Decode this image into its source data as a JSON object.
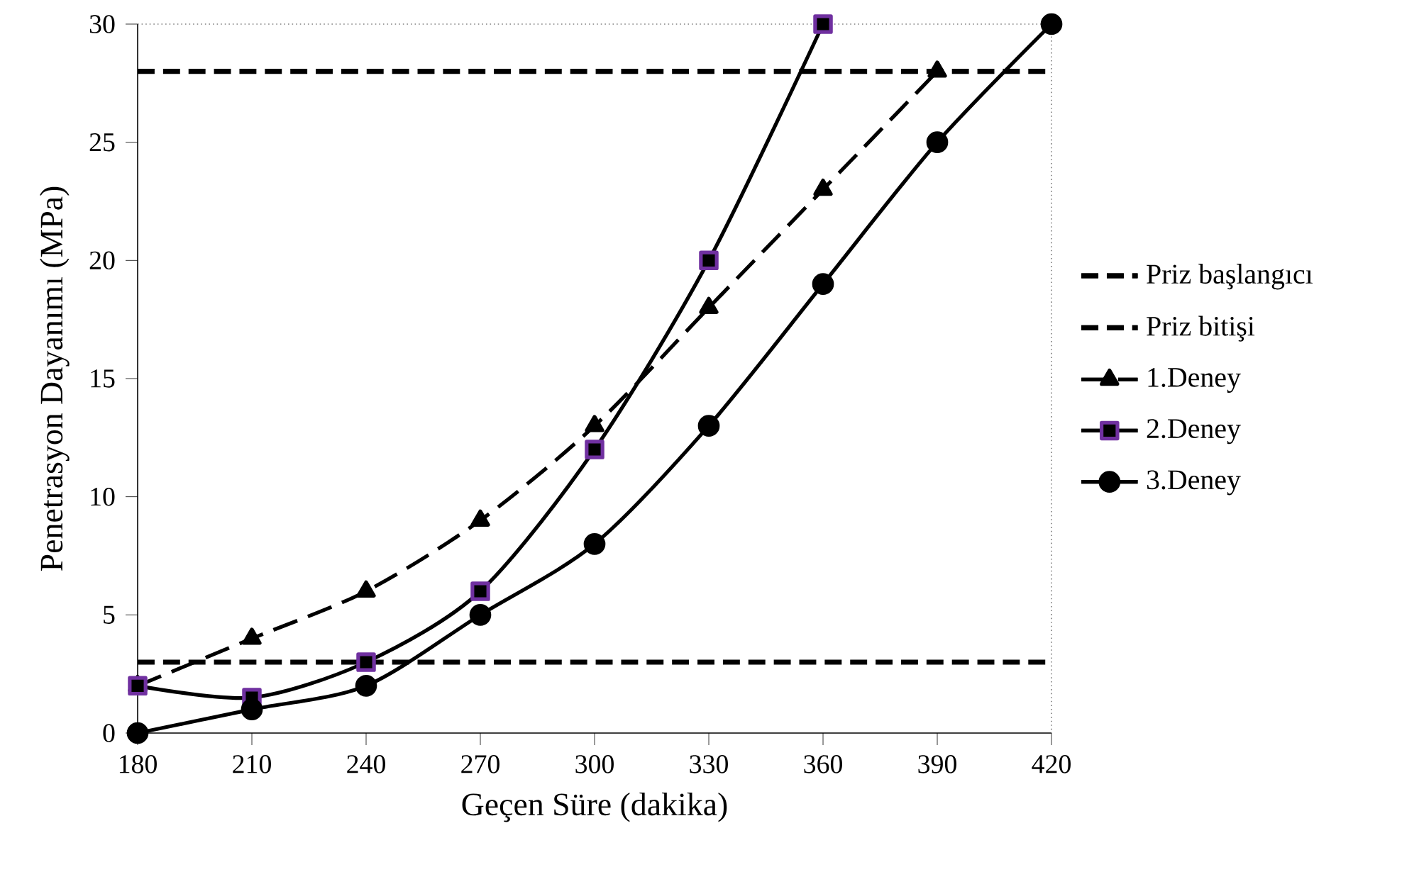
{
  "chart_data": {
    "type": "line",
    "xlabel": "Geçen Süre (dakika)",
    "ylabel": "Penetrasyon Dayanımı (MPa)",
    "x": [
      180,
      210,
      240,
      270,
      300,
      330,
      360,
      390,
      420
    ],
    "series": [
      {
        "name": "1.Deney",
        "color": "#000000",
        "marker": "triangle",
        "line_style": "dashed",
        "values": [
          2,
          4,
          6,
          9,
          13,
          18,
          23,
          28,
          null
        ]
      },
      {
        "name": "2.Deney",
        "color": "#000000",
        "marker": "square",
        "line_style": "solid",
        "values": [
          2,
          1.5,
          3,
          6,
          12,
          20,
          30,
          null,
          null
        ]
      },
      {
        "name": "3.Deney",
        "color": "#000000",
        "marker": "circle",
        "line_style": "solid",
        "values": [
          0,
          1,
          2,
          5,
          8,
          13,
          19,
          25,
          30
        ]
      }
    ],
    "ref_lines": [
      {
        "axis": "y",
        "value": 3,
        "label": "Priz başlangıcı",
        "color": "#000000",
        "line_style": "dashed"
      },
      {
        "axis": "y",
        "value": 28,
        "label": "Priz bitişi",
        "color": "#000000",
        "line_style": "dashed"
      }
    ],
    "xlim": [
      180,
      420
    ],
    "xticks": [
      180,
      210,
      240,
      270,
      300,
      330,
      360,
      390,
      420
    ],
    "ylim": [
      0,
      30
    ],
    "yticks": [
      0,
      5,
      10,
      15,
      20,
      25,
      30
    ],
    "grid": false,
    "legend": "right"
  }
}
